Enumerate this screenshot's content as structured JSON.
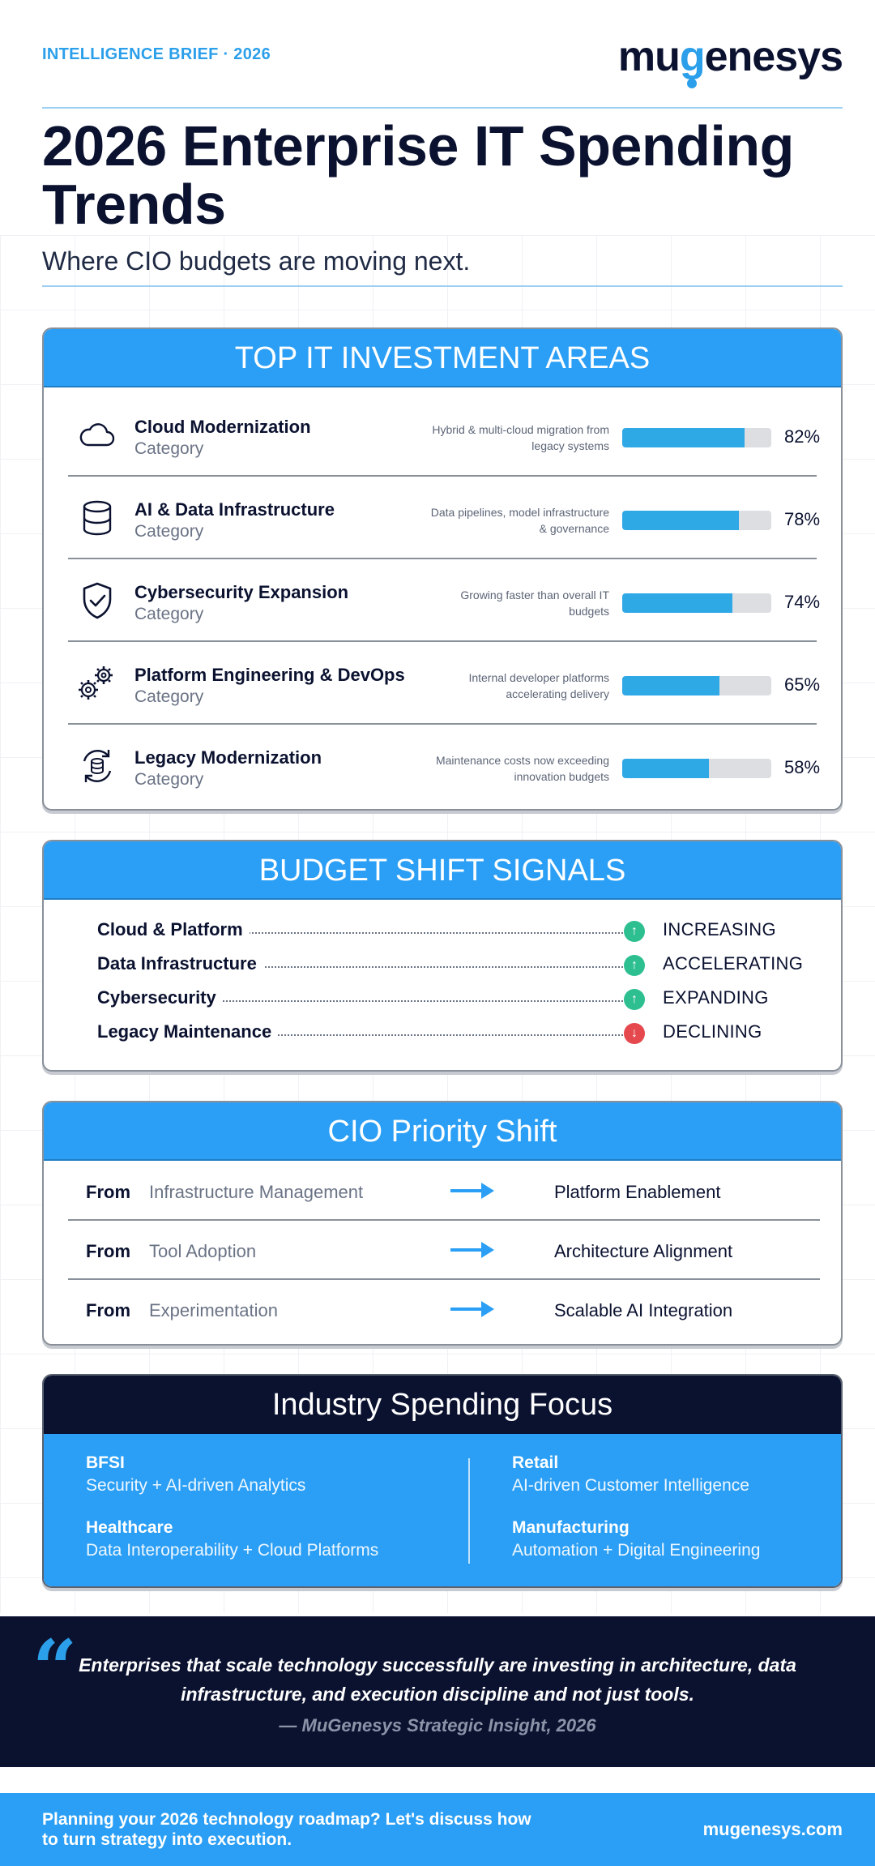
{
  "header": {
    "brief": "INTELLIGENCE BRIEF · 2026",
    "logo_pre": "mu",
    "logo_accent": "g",
    "logo_post": "enesys",
    "title": "2026 Enterprise IT Spending Trends",
    "subtitle": "Where CIO budgets are moving next."
  },
  "investment": {
    "heading": "TOP IT INVESTMENT AREAS",
    "items": [
      {
        "name": "Cloud Modernization",
        "category": "Category",
        "note": "Hybrid & multi-cloud migration from legacy systems",
        "value": 82,
        "pct": "82%",
        "icon": "cloud-icon"
      },
      {
        "name": "AI & Data Infrastructure",
        "category": "Category",
        "note": "Data pipelines, model infrastructure & governance",
        "value": 78,
        "pct": "78%",
        "icon": "database-icon"
      },
      {
        "name": "Cybersecurity Expansion",
        "category": "Category",
        "note": "Growing faster than overall IT budgets",
        "value": 74,
        "pct": "74%",
        "icon": "shield-check-icon"
      },
      {
        "name": "Platform Engineering & DevOps",
        "category": "Category",
        "note": "Internal developer platforms accelerating delivery",
        "value": 65,
        "pct": "65%",
        "icon": "gears-icon"
      },
      {
        "name": "Legacy Modernization",
        "category": "Category",
        "note": "Maintenance costs now exceeding innovation budgets",
        "value": 58,
        "pct": "58%",
        "icon": "refresh-database-icon"
      }
    ]
  },
  "signals": {
    "heading": "BUDGET SHIFT SIGNALS",
    "items": [
      {
        "label": "Cloud & Platform",
        "status": "INCREASING",
        "direction": "up",
        "color": "#2ebf91"
      },
      {
        "label": "Data Infrastructure",
        "status": "ACCELERATING",
        "direction": "up",
        "color": "#2ebf91"
      },
      {
        "label": "Cybersecurity",
        "status": "EXPANDING",
        "direction": "up",
        "color": "#2ebf91"
      },
      {
        "label": "Legacy Maintenance",
        "status": "DECLINING",
        "direction": "down",
        "color": "#e5484d"
      }
    ]
  },
  "priority": {
    "heading": "CIO Priority Shift",
    "rows": [
      {
        "from_label": "From",
        "old": "Infrastructure Management",
        "new": "Platform Enablement"
      },
      {
        "from_label": "From",
        "old": "Tool Adoption",
        "new": "Architecture Alignment"
      },
      {
        "from_label": "From",
        "old": "Experimentation",
        "new": "Scalable AI Integration"
      }
    ]
  },
  "industry": {
    "heading": "Industry Spending Focus",
    "items": [
      {
        "sector": "BFSI",
        "focus": "Security + AI-driven Analytics"
      },
      {
        "sector": "Retail",
        "focus": "AI-driven Customer Intelligence"
      },
      {
        "sector": "Healthcare",
        "focus": "Data Interoperability + Cloud Platforms"
      },
      {
        "sector": "Manufacturing",
        "focus": "Automation + Digital Engineering"
      }
    ]
  },
  "quote": {
    "mark": "“",
    "text": "Enterprises that scale technology successfully are investing in architecture, data infrastructure, and execution discipline and not just tools.",
    "source": "— MuGenesys Strategic Insight, 2026"
  },
  "footer": {
    "cta": "Planning your 2026 technology roadmap? Let's discuss how to turn strategy into execution.",
    "url": "mugenesys.com"
  },
  "colors": {
    "accent": "#2b9ff5",
    "navy": "#0b1230",
    "bar": "#2fa8e6",
    "up": "#2ebf91",
    "down": "#e5484d"
  }
}
